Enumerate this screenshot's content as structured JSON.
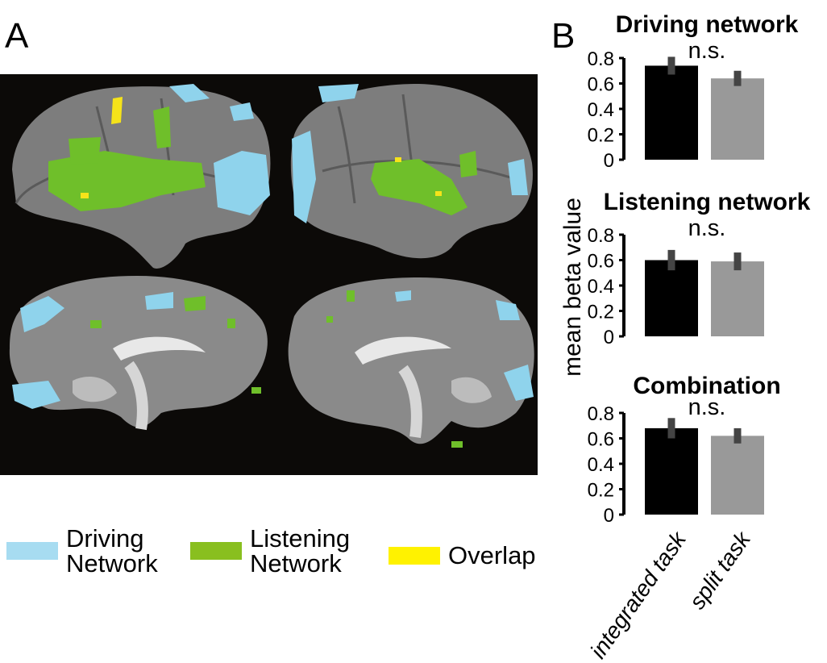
{
  "panels": {
    "a_label": "A",
    "b_label": "B"
  },
  "legend": [
    {
      "line1": "Driving",
      "line2": "Network",
      "color": "#a7dcf1"
    },
    {
      "line1": "Listening",
      "line2": "Network",
      "color": "#89bf1f"
    },
    {
      "line1": "Overlap",
      "line2": "",
      "color": "#fff200"
    }
  ],
  "brain_colors": {
    "background": "#0c0a08",
    "cortex": "#7a7a7a",
    "driving": "#8fd3ec",
    "listening": "#6fbf2a",
    "overlap": "#f5e31a"
  },
  "chart_data": {
    "type": "bar",
    "ylabel": "mean beta value",
    "categories": [
      "integrated task",
      "split task"
    ],
    "bar_colors": [
      "#000000",
      "#999999"
    ],
    "ylim": [
      0,
      0.8
    ],
    "yticks": [
      "0.8",
      "0.6",
      "0.4",
      "0.2",
      "0"
    ],
    "subplots": [
      {
        "title": "Driving network",
        "annotation": "n.s.",
        "values": [
          0.74,
          0.64
        ],
        "errors": [
          0.07,
          0.06
        ]
      },
      {
        "title": "Listening network",
        "annotation": "n.s.",
        "values": [
          0.6,
          0.59
        ],
        "errors": [
          0.08,
          0.07
        ]
      },
      {
        "title": "Combination",
        "annotation": "n.s.",
        "values": [
          0.68,
          0.62
        ],
        "errors": [
          0.08,
          0.06
        ]
      }
    ]
  }
}
